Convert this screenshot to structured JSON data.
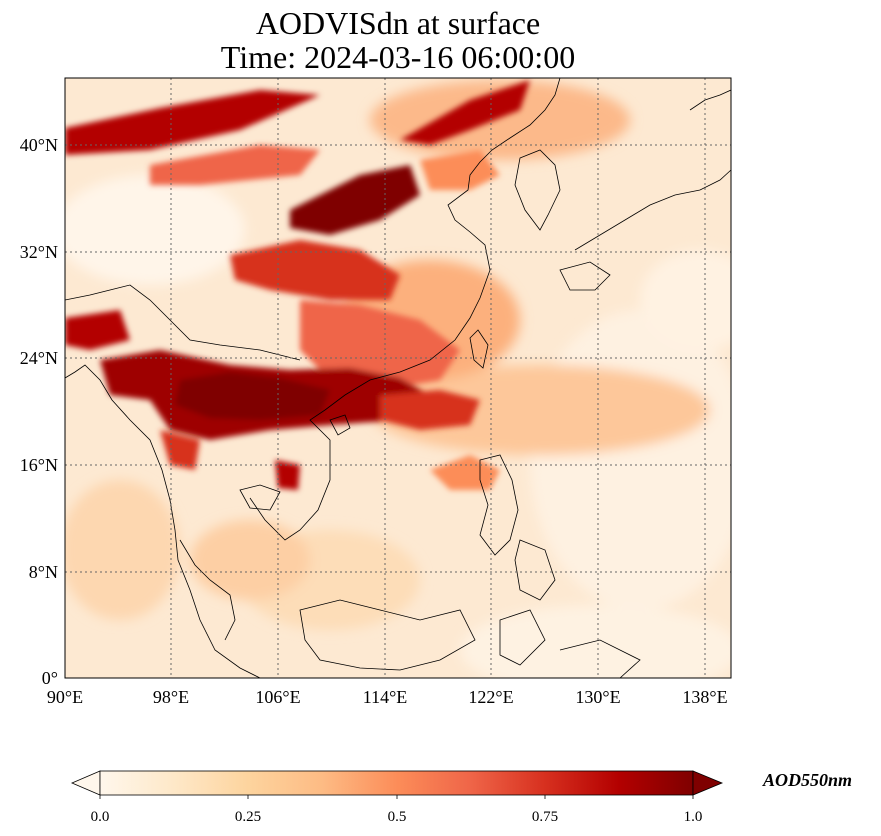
{
  "title_line1": "AODVISdn at surface",
  "title_line2": "Time: 2024-03-16 06:00:00",
  "chart_data": {
    "type": "heatmap",
    "map_extent": {
      "lon": [
        90,
        139
      ],
      "lat": [
        0,
        45
      ]
    },
    "projection": "PlateCarree",
    "gridlines": "dotted",
    "lon_ticks": [
      "90°E",
      "98°E",
      "106°E",
      "114°E",
      "122°E",
      "130°E",
      "138°E"
    ],
    "lat_ticks": [
      "0°",
      "8°N",
      "16°N",
      "24°N",
      "32°N",
      "40°N"
    ],
    "colorbar": {
      "label": "AOD550nm",
      "cmap": "OrRd",
      "range": [
        0.0,
        1.0
      ],
      "extend": "both",
      "ticks": [
        "0.0",
        "0.25",
        "0.5",
        "0.75",
        "1.0"
      ],
      "colors": [
        "#fff7ec",
        "#fee8c8",
        "#fdd49e",
        "#fdbb84",
        "#fc8d59",
        "#ef6548",
        "#d7301f",
        "#b30000",
        "#7f0000"
      ]
    },
    "features": [
      {
        "name": "dust band north of 40°N",
        "aod": ">1.0"
      },
      {
        "name": "North China Plain plume",
        "aod": ">1.0"
      },
      {
        "name": "Sichuan Basin",
        "aod": "0.6-1.0"
      },
      {
        "name": "Indochina biomass burning",
        "aod": ">1.0"
      },
      {
        "name": "open ocean",
        "aod": "0.05-0.2"
      }
    ]
  }
}
